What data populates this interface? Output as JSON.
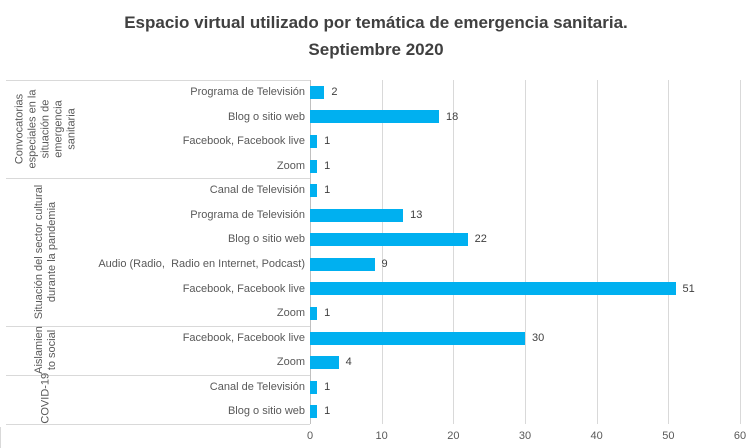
{
  "title": {
    "line1": "Espacio virtual utilizado por temática de emergencia sanitaria.",
    "line2": "Septiembre 2020"
  },
  "chart_data": {
    "type": "bar",
    "orientation": "horizontal",
    "title": "Espacio virtual utilizado por temática de emergencia sanitaria. Septiembre 2020",
    "xlabel": "",
    "ylabel": "",
    "xlim": [
      0,
      60
    ],
    "x_ticks": [
      0,
      10,
      20,
      30,
      40,
      50,
      60
    ],
    "grid": true,
    "legend": false,
    "colors": {
      "bar": "#00B0F0",
      "gridline": "#d9d9d9",
      "axis_line": "#c0c0c0",
      "title_text": "#404040",
      "label_text": "#595959",
      "value_text": "#404040"
    },
    "groups": [
      {
        "label": "Convocatorias especiales en la situación de emergencia sanitaria",
        "label_lines": [
          "Convocatorias",
          "especiales en la",
          "situación de",
          "emergencia",
          "sanitaria"
        ],
        "items": [
          {
            "category": "Programa de Televisión",
            "value": 2
          },
          {
            "category": "Blog o sitio web",
            "value": 18
          },
          {
            "category": "Facebook, Facebook live",
            "value": 1
          },
          {
            "category": "Zoom",
            "value": 1
          }
        ]
      },
      {
        "label": "Situación del sector cultural durante la pandemia",
        "label_lines": [
          "Situación del sector cultural",
          "durante la pandemia"
        ],
        "items": [
          {
            "category": "Canal de Televisión",
            "value": 1
          },
          {
            "category": "Programa de Televisión",
            "value": 13
          },
          {
            "category": "Blog o sitio web",
            "value": 22
          },
          {
            "category": "Audio (Radio,  Radio en Internet, Podcast)",
            "value": 9
          },
          {
            "category": "Facebook, Facebook live",
            "value": 51
          },
          {
            "category": "Zoom",
            "value": 1
          }
        ]
      },
      {
        "label": "Aislamiento social",
        "label_lines": [
          "Aislamien",
          "to social"
        ],
        "items": [
          {
            "category": "Facebook, Facebook live",
            "value": 30
          },
          {
            "category": "Zoom",
            "value": 4
          }
        ]
      },
      {
        "label": "COVID-19",
        "label_lines": [
          "COVID-19"
        ],
        "items": [
          {
            "category": "Canal de Televisión",
            "value": 1
          },
          {
            "category": "Blog o sitio web",
            "value": 1
          }
        ]
      }
    ]
  }
}
